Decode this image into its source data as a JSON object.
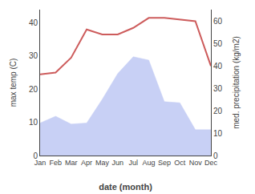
{
  "chart_data": {
    "type": "line",
    "xlabel": "date (month)",
    "ylabel": "max temp (C)",
    "y2label": "med. precipitation (kg/m2)",
    "categories": [
      "Jan",
      "Feb",
      "Mar",
      "Apr",
      "May",
      "Jun",
      "Jul",
      "Aug",
      "Sep",
      "Oct",
      "Nov",
      "Dec"
    ],
    "series": [
      {
        "type": "area",
        "axis": "y2",
        "color": "#c8d0f5",
        "values": [
          14.5,
          17.5,
          14.0,
          14.5,
          25.0,
          36.5,
          44.0,
          42.5,
          24.0,
          23.5,
          11.5,
          11.5
        ]
      },
      {
        "type": "line",
        "color": "#cd5c5c",
        "values": [
          24.5,
          25.0,
          29.5,
          38.0,
          36.5,
          36.5,
          38.5,
          41.5,
          41.5,
          41.0,
          40.5,
          27.0
        ]
      }
    ],
    "ylim": [
      0,
      44
    ],
    "yticks": [
      0,
      10,
      20,
      30,
      40
    ],
    "y2lim": [
      0,
      65
    ],
    "y2ticks": [
      0,
      10,
      20,
      30,
      40,
      50,
      60
    ],
    "grid": false
  }
}
